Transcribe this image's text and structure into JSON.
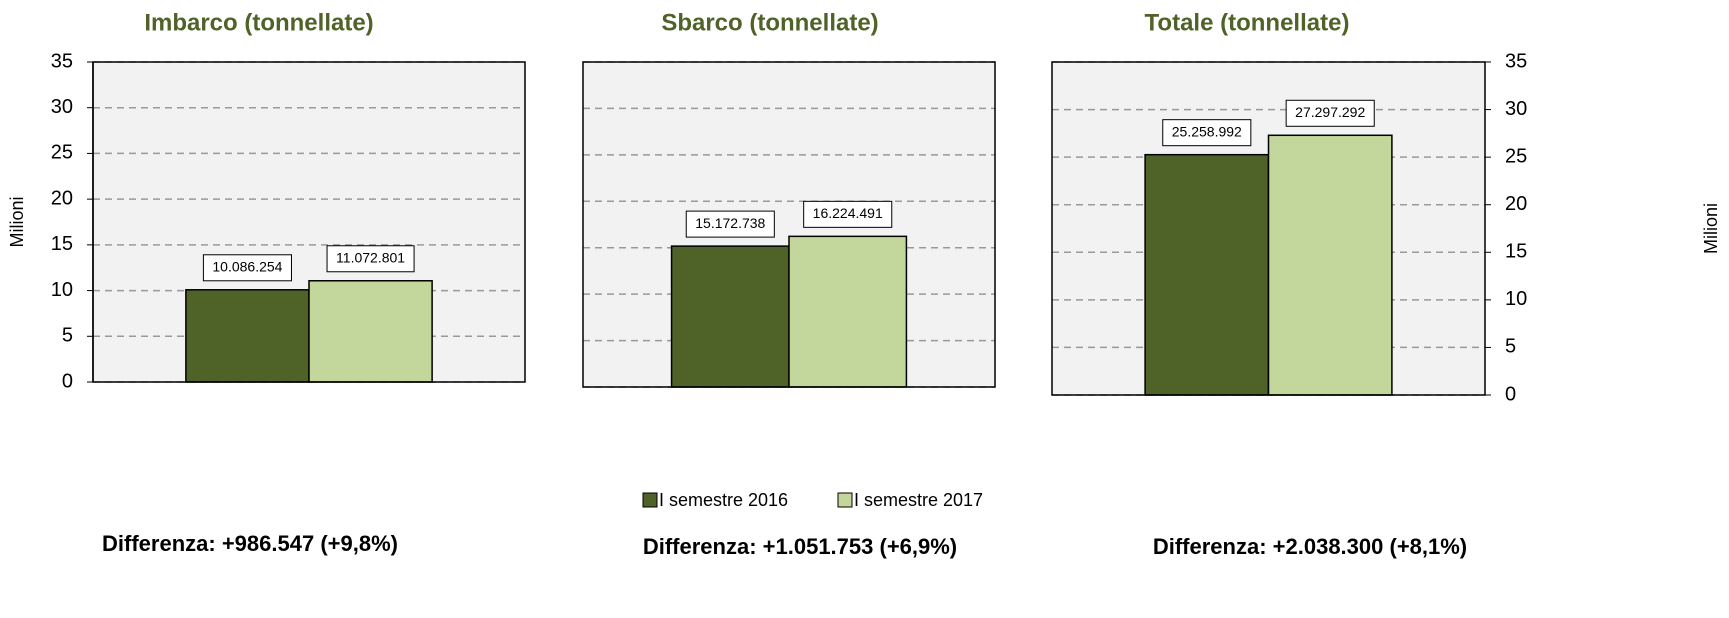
{
  "legend": [
    {
      "name": "I semestre 2016",
      "color": "#4f6228"
    },
    {
      "name": "I semestre 2017",
      "color": "#c3d69b"
    }
  ],
  "chart_data": [
    {
      "type": "bar",
      "title": "Imbarco (tonnellate)",
      "ylabel": "Milioni",
      "yaxis": "left",
      "values": [
        10.086254,
        11.072801
      ],
      "value_labels": [
        "10.086.254",
        "11.072.801"
      ],
      "ylim": [
        0,
        35
      ],
      "yticks": [
        0,
        5,
        10,
        15,
        20,
        25,
        30,
        35
      ],
      "grid": true,
      "annotation": "Differenza: +986.547 (+9,8%)"
    },
    {
      "type": "bar",
      "title": "Sbarco (tonnellate)",
      "yaxis": "none",
      "values": [
        15.172738,
        16.224491
      ],
      "value_labels": [
        "15.172.738",
        "16.224.491"
      ],
      "ylim": [
        0,
        35
      ],
      "yticks": [
        0,
        5,
        10,
        15,
        20,
        25,
        30,
        35
      ],
      "grid": true,
      "annotation": "Differenza: +1.051.753  (+6,9%)"
    },
    {
      "type": "bar",
      "title": "Totale (tonnellate)",
      "ylabel": "Milioni",
      "yaxis": "right",
      "values": [
        25.258992,
        27.297292
      ],
      "value_labels": [
        "25.258.992",
        "27.297.292"
      ],
      "ylim": [
        0,
        35
      ],
      "yticks": [
        0,
        5,
        10,
        15,
        20,
        25,
        30,
        35
      ],
      "grid": true,
      "annotation": "Differenza:  +2.038.300 (+8,1%)"
    }
  ]
}
